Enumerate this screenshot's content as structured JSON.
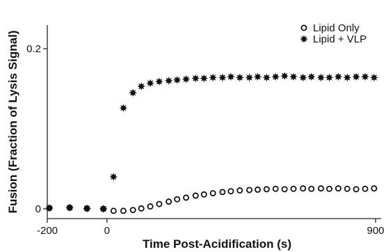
{
  "chart_data": {
    "type": "scatter",
    "title": "",
    "xlabel": "Time Post-Acidification (s)",
    "ylabel": "Fusion (Fraction of Lysis Signal)",
    "xlim": [
      -200,
      900
    ],
    "ylim": [
      0,
      0.2
    ],
    "xticks": [
      -200,
      0,
      900
    ],
    "xtick_labels": [
      "-200",
      "0",
      "900"
    ],
    "yticks": [
      0,
      0.2
    ],
    "ytick_labels": [
      "0",
      "0.2"
    ],
    "grid": false,
    "legend_position": "top-right",
    "series": [
      {
        "name": "Lipid Only",
        "marker": "open-circle",
        "color": "#111111",
        "x": [
          -193,
          -125,
          -67,
          -12,
          22,
          55,
          87,
          115,
          145,
          175,
          207,
          235,
          265,
          297,
          325,
          355,
          387,
          415,
          445,
          477,
          505,
          535,
          565,
          595,
          625,
          657,
          685,
          717,
          745,
          775,
          805,
          835,
          865,
          895
        ],
        "y": [
          0.001,
          0.0015,
          0.0005,
          0.0,
          -0.0025,
          -0.0025,
          -0.0015,
          0.0005,
          0.003,
          0.006,
          0.009,
          0.012,
          0.014,
          0.0165,
          0.018,
          0.0195,
          0.021,
          0.022,
          0.023,
          0.0235,
          0.024,
          0.0245,
          0.025,
          0.0245,
          0.025,
          0.0255,
          0.025,
          0.0255,
          0.025,
          0.0255,
          0.025,
          0.0245,
          0.025,
          0.0255
        ]
      },
      {
        "name": "Lipid + VLP",
        "marker": "filled-star",
        "color": "#111111",
        "x": [
          -193,
          -125,
          -67,
          -12,
          22,
          55,
          87,
          115,
          145,
          175,
          207,
          235,
          265,
          297,
          325,
          355,
          387,
          415,
          445,
          477,
          505,
          535,
          565,
          595,
          625,
          657,
          685,
          717,
          745,
          775,
          805,
          835,
          865,
          895
        ],
        "y": [
          0.001,
          0.0015,
          0.0005,
          0.0,
          0.04,
          0.126,
          0.145,
          0.153,
          0.157,
          0.159,
          0.16,
          0.161,
          0.162,
          0.163,
          0.163,
          0.164,
          0.164,
          0.165,
          0.164,
          0.164,
          0.165,
          0.164,
          0.165,
          0.166,
          0.165,
          0.164,
          0.165,
          0.164,
          0.164,
          0.165,
          0.164,
          0.165,
          0.165,
          0.164
        ]
      }
    ]
  }
}
